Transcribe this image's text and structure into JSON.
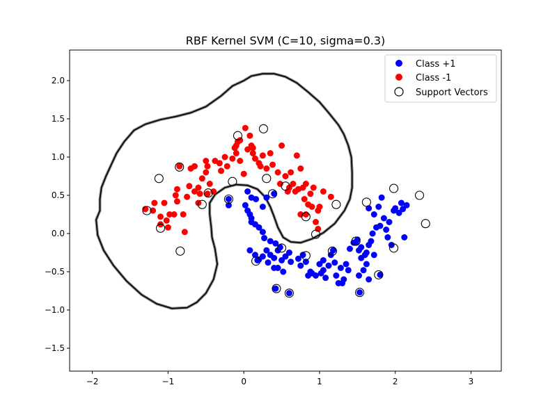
{
  "chart_data": {
    "type": "scatter",
    "title": "RBF Kernel SVM (C=10, sigma=0.3)",
    "xlabel": "",
    "ylabel": "",
    "xlim": [
      -2.3,
      3.4
    ],
    "ylim": [
      -1.8,
      2.4
    ],
    "xticks": [
      -2,
      -1,
      0,
      1,
      2,
      3
    ],
    "yticks": [
      -1.5,
      -1.0,
      -0.5,
      0.0,
      0.5,
      1.0,
      1.5,
      2.0
    ],
    "xtick_labels": [
      "−2",
      "−1",
      "0",
      "1",
      "2",
      "3"
    ],
    "ytick_labels": [
      "−1.5",
      "−1.0",
      "−0.5",
      "0.0",
      "0.5",
      "1.0",
      "1.5",
      "2.0"
    ],
    "grid": false,
    "legend_position": "top-right",
    "legend": [
      {
        "label": "Class +1",
        "marker": "filled-circle",
        "color": "#0000ff"
      },
      {
        "label": "Class -1",
        "marker": "filled-circle",
        "color": "#ff0000"
      },
      {
        "label": "Support Vectors",
        "marker": "hollow-circle",
        "color": "#000000"
      }
    ],
    "series": [
      {
        "name": "Class +1",
        "color": "#0000ff",
        "points": [
          [
            -0.2,
            0.45
          ],
          [
            -0.2,
            0.37
          ],
          [
            0.02,
            0.37
          ],
          [
            0.05,
            0.3
          ],
          [
            0.08,
            0.25
          ],
          [
            0.1,
            0.15
          ],
          [
            0.15,
            0.12
          ],
          [
            0.2,
            0.08
          ],
          [
            0.25,
            0.02
          ],
          [
            0.27,
            -0.06
          ],
          [
            0.05,
            0.55
          ],
          [
            0.1,
            0.47
          ],
          [
            0.25,
            0.35
          ],
          [
            0.3,
            0.47
          ],
          [
            0.4,
            0.52
          ],
          [
            0.08,
            -0.22
          ],
          [
            0.15,
            -0.28
          ],
          [
            0.18,
            -0.35
          ],
          [
            0.25,
            -0.3
          ],
          [
            0.3,
            -0.22
          ],
          [
            0.32,
            -0.38
          ],
          [
            0.35,
            -0.28
          ],
          [
            0.4,
            -0.32
          ],
          [
            0.42,
            -0.13
          ],
          [
            0.45,
            -0.22
          ],
          [
            0.48,
            -0.18
          ],
          [
            0.5,
            -0.35
          ],
          [
            0.4,
            -0.45
          ],
          [
            0.45,
            -0.45
          ],
          [
            0.52,
            -0.5
          ],
          [
            0.55,
            -0.3
          ],
          [
            0.6,
            -0.25
          ],
          [
            0.62,
            -0.37
          ],
          [
            0.72,
            -0.33
          ],
          [
            0.78,
            -0.28
          ],
          [
            0.82,
            -0.37
          ],
          [
            0.85,
            -0.55
          ],
          [
            0.88,
            -0.5
          ],
          [
            0.95,
            -0.55
          ],
          [
            1.0,
            -0.4
          ],
          [
            1.05,
            -0.35
          ],
          [
            1.05,
            -0.48
          ],
          [
            1.08,
            -0.58
          ],
          [
            1.15,
            -0.28
          ],
          [
            1.18,
            -0.22
          ],
          [
            1.2,
            -0.38
          ],
          [
            1.22,
            -0.55
          ],
          [
            1.28,
            -0.45
          ],
          [
            1.32,
            -0.6
          ],
          [
            1.35,
            -0.4
          ],
          [
            1.4,
            -0.2
          ],
          [
            1.38,
            -0.48
          ],
          [
            1.48,
            -0.12
          ],
          [
            1.5,
            -0.08
          ],
          [
            1.52,
            -0.22
          ],
          [
            1.55,
            -0.18
          ],
          [
            1.55,
            -0.32
          ],
          [
            1.58,
            -0.48
          ],
          [
            1.62,
            -0.4
          ],
          [
            1.65,
            -0.6
          ],
          [
            1.6,
            -0.28
          ],
          [
            1.52,
            -0.55
          ],
          [
            1.65,
            -0.15
          ],
          [
            1.68,
            -0.1
          ],
          [
            1.7,
            0.0
          ],
          [
            1.72,
            0.25
          ],
          [
            1.75,
            0.08
          ],
          [
            1.8,
            0.1
          ],
          [
            1.82,
            0.47
          ],
          [
            1.85,
            0.2
          ],
          [
            1.88,
            0.05
          ],
          [
            1.9,
            -0.05
          ],
          [
            1.92,
            0.15
          ],
          [
            1.95,
            -0.15
          ],
          [
            1.98,
            0.3
          ],
          [
            2.0,
            0.33
          ],
          [
            2.05,
            0.27
          ],
          [
            2.08,
            0.4
          ],
          [
            2.1,
            0.32
          ],
          [
            2.15,
            0.37
          ],
          [
            2.12,
            -0.05
          ],
          [
            1.78,
            0.35
          ],
          [
            1.65,
            0.33
          ],
          [
            1.62,
            -0.25
          ],
          [
            1.45,
            -0.12
          ],
          [
            1.3,
            -0.65
          ],
          [
            1.12,
            -0.42
          ],
          [
            0.9,
            -0.52
          ],
          [
            0.42,
            -0.72
          ],
          [
            0.6,
            -0.78
          ],
          [
            1.53,
            -0.77
          ],
          [
            1.8,
            -0.54
          ],
          [
            1.72,
            -0.28
          ],
          [
            0.2,
            -0.34
          ],
          [
            0.16,
            0.45
          ],
          [
            0.1,
            0.2
          ],
          [
            0.35,
            -0.1
          ],
          [
            0.75,
            -0.42
          ],
          [
            1.02,
            -0.52
          ],
          [
            1.25,
            -0.65
          ]
        ]
      },
      {
        "name": "Class -1",
        "color": "#ff0000",
        "points": [
          [
            -1.18,
            0.4
          ],
          [
            -1.05,
            0.4
          ],
          [
            -1.1,
            0.22
          ],
          [
            -1.02,
            0.17
          ],
          [
            -0.98,
            0.25
          ],
          [
            -0.92,
            0.25
          ],
          [
            -0.88,
            0.42
          ],
          [
            -0.8,
            0.25
          ],
          [
            -0.78,
            0.02
          ],
          [
            -1.1,
            0.12
          ],
          [
            -1.0,
            0.08
          ],
          [
            -1.2,
            0.3
          ],
          [
            -0.9,
            0.5
          ],
          [
            -0.88,
            0.58
          ],
          [
            -0.75,
            0.48
          ],
          [
            -0.72,
            0.62
          ],
          [
            -0.7,
            0.85
          ],
          [
            -0.65,
            0.55
          ],
          [
            -0.6,
            0.6
          ],
          [
            -0.65,
            0.88
          ],
          [
            -0.55,
            0.72
          ],
          [
            -0.5,
            0.8
          ],
          [
            -0.5,
            0.95
          ],
          [
            -0.48,
            0.88
          ],
          [
            -0.45,
            0.65
          ],
          [
            -0.4,
            0.55
          ],
          [
            -0.38,
            0.95
          ],
          [
            -0.32,
            0.92
          ],
          [
            -0.3,
            0.82
          ],
          [
            -0.25,
            1.0
          ],
          [
            -0.22,
            0.88
          ],
          [
            -0.15,
            0.98
          ],
          [
            -0.12,
            1.12
          ],
          [
            -0.1,
            1.15
          ],
          [
            -0.08,
            1.2
          ],
          [
            -0.05,
            1.22
          ],
          [
            -0.1,
            1.05
          ],
          [
            -0.05,
            0.95
          ],
          [
            0.0,
            0.78
          ],
          [
            0.05,
            1.1
          ],
          [
            0.1,
            1.15
          ],
          [
            0.12,
            1.05
          ],
          [
            0.15,
            0.98
          ],
          [
            0.2,
            0.92
          ],
          [
            0.22,
            0.88
          ],
          [
            0.25,
            1.02
          ],
          [
            0.3,
            0.85
          ],
          [
            0.35,
            1.05
          ],
          [
            0.38,
            0.9
          ],
          [
            0.45,
            0.8
          ],
          [
            0.48,
            0.65
          ],
          [
            0.5,
            1.15
          ],
          [
            0.55,
            0.75
          ],
          [
            0.58,
            0.55
          ],
          [
            0.6,
            0.6
          ],
          [
            0.62,
            0.8
          ],
          [
            0.65,
            0.65
          ],
          [
            0.68,
            0.55
          ],
          [
            0.7,
            1.02
          ],
          [
            0.72,
            0.58
          ],
          [
            0.75,
            0.85
          ],
          [
            0.78,
            0.6
          ],
          [
            0.8,
            0.45
          ],
          [
            0.82,
            0.65
          ],
          [
            0.85,
            0.38
          ],
          [
            0.88,
            0.52
          ],
          [
            0.9,
            0.35
          ],
          [
            0.92,
            0.6
          ],
          [
            0.98,
            0.3
          ],
          [
            1.0,
            0.35
          ],
          [
            1.05,
            0.55
          ],
          [
            1.15,
            0.48
          ],
          [
            0.95,
            0.15
          ],
          [
            0.98,
            0.06
          ],
          [
            0.82,
            0.25
          ],
          [
            0.75,
            0.25
          ],
          [
            0.08,
            1.28
          ],
          [
            0.12,
            1.12
          ],
          [
            0.02,
            1.38
          ],
          [
            -0.6,
            0.4
          ],
          [
            -1.3,
            0.32
          ],
          [
            -0.85,
            0.88
          ],
          [
            -0.48,
            0.52
          ],
          [
            -0.58,
            0.52
          ]
        ]
      },
      {
        "name": "Support Vectors",
        "color": "#000000",
        "points": [
          [
            -1.12,
            0.72
          ],
          [
            -0.85,
            0.87
          ],
          [
            -0.08,
            1.28
          ],
          [
            0.26,
            1.37
          ],
          [
            -1.28,
            0.3
          ],
          [
            -1.1,
            0.07
          ],
          [
            -0.84,
            -0.23
          ],
          [
            -0.55,
            0.38
          ],
          [
            -0.47,
            0.53
          ],
          [
            -0.15,
            0.68
          ],
          [
            -0.2,
            0.45
          ],
          [
            0.3,
            0.72
          ],
          [
            0.38,
            0.52
          ],
          [
            0.55,
            0.62
          ],
          [
            0.82,
            0.22
          ],
          [
            0.95,
            -0.01
          ],
          [
            1.22,
            0.38
          ],
          [
            1.62,
            0.41
          ],
          [
            1.98,
            0.59
          ],
          [
            2.32,
            0.5
          ],
          [
            2.4,
            0.13
          ],
          [
            1.98,
            -0.19
          ],
          [
            1.78,
            -0.54
          ],
          [
            1.53,
            -0.77
          ],
          [
            1.48,
            -0.1
          ],
          [
            1.17,
            -0.23
          ],
          [
            0.82,
            -0.29
          ],
          [
            0.5,
            -0.19
          ],
          [
            0.16,
            -0.36
          ],
          [
            0.43,
            -0.72
          ],
          [
            0.6,
            -0.78
          ]
        ]
      }
    ],
    "decision_boundary": [
      [
        -1.95,
        0.18
      ],
      [
        -1.9,
        0.3
      ],
      [
        -1.9,
        0.45
      ],
      [
        -1.88,
        0.6
      ],
      [
        -1.82,
        0.75
      ],
      [
        -1.75,
        0.9
      ],
      [
        -1.68,
        1.05
      ],
      [
        -1.58,
        1.2
      ],
      [
        -1.45,
        1.35
      ],
      [
        -1.3,
        1.43
      ],
      [
        -1.1,
        1.49
      ],
      [
        -0.9,
        1.53
      ],
      [
        -0.7,
        1.58
      ],
      [
        -0.5,
        1.66
      ],
      [
        -0.3,
        1.8
      ],
      [
        -0.15,
        1.93
      ],
      [
        0.0,
        2.0
      ],
      [
        0.1,
        2.06
      ],
      [
        0.25,
        2.09
      ],
      [
        0.4,
        2.09
      ],
      [
        0.55,
        2.05
      ],
      [
        0.7,
        1.97
      ],
      [
        0.85,
        1.85
      ],
      [
        1.0,
        1.72
      ],
      [
        1.12,
        1.58
      ],
      [
        1.25,
        1.42
      ],
      [
        1.32,
        1.3
      ],
      [
        1.38,
        1.15
      ],
      [
        1.42,
        1.0
      ],
      [
        1.43,
        0.8
      ],
      [
        1.43,
        0.6
      ],
      [
        1.4,
        0.45
      ],
      [
        1.33,
        0.3
      ],
      [
        1.2,
        0.13
      ],
      [
        1.05,
        0.01
      ],
      [
        0.9,
        -0.07
      ],
      [
        0.75,
        -0.12
      ],
      [
        0.62,
        -0.11
      ],
      [
        0.52,
        -0.05
      ],
      [
        0.45,
        0.08
      ],
      [
        0.4,
        0.22
      ],
      [
        0.35,
        0.35
      ],
      [
        0.28,
        0.48
      ],
      [
        0.18,
        0.58
      ],
      [
        0.05,
        0.63
      ],
      [
        -0.1,
        0.64
      ],
      [
        -0.25,
        0.6
      ],
      [
        -0.38,
        0.51
      ],
      [
        -0.45,
        0.4
      ],
      [
        -0.45,
        0.25
      ],
      [
        -0.43,
        0.08
      ],
      [
        -0.42,
        -0.05
      ],
      [
        -0.38,
        -0.2
      ],
      [
        -0.35,
        -0.4
      ],
      [
        -0.4,
        -0.6
      ],
      [
        -0.5,
        -0.78
      ],
      [
        -0.62,
        -0.9
      ],
      [
        -0.75,
        -0.97
      ],
      [
        -0.95,
        -0.98
      ],
      [
        -1.15,
        -0.92
      ],
      [
        -1.35,
        -0.8
      ],
      [
        -1.55,
        -0.62
      ],
      [
        -1.72,
        -0.42
      ],
      [
        -1.85,
        -0.22
      ],
      [
        -1.93,
        -0.02
      ],
      [
        -1.95,
        0.18
      ]
    ]
  }
}
